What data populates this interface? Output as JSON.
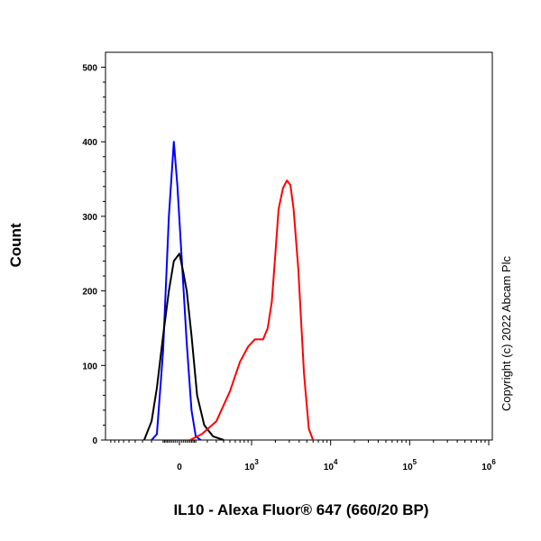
{
  "chart_data": {
    "type": "line",
    "xlabel": "IL10 - Alexa Fluor® 647 (660/20 BP)",
    "ylabel": "Count",
    "ylim": [
      0,
      520
    ],
    "y_ticks": [
      0,
      100,
      200,
      300,
      400,
      500
    ],
    "x_scale": "biexponential",
    "x_ticks": [
      {
        "value": 0,
        "base": "0",
        "exp": ""
      },
      {
        "value": 1000,
        "base": "10",
        "exp": "3"
      },
      {
        "value": 10000,
        "base": "10",
        "exp": "4"
      },
      {
        "value": 100000,
        "base": "10",
        "exp": "5"
      },
      {
        "value": 1000000,
        "base": "10",
        "exp": "6"
      }
    ],
    "grid": false,
    "series": [
      {
        "color": "#0000ff",
        "points": [
          [
            -200,
            0
          ],
          [
            -150,
            8
          ],
          [
            -100,
            120
          ],
          [
            -60,
            300
          ],
          [
            -30,
            400
          ],
          [
            -10,
            340
          ],
          [
            10,
            250
          ],
          [
            40,
            130
          ],
          [
            70,
            40
          ],
          [
            100,
            5
          ],
          [
            140,
            0
          ]
        ]
      },
      {
        "color": "#000000",
        "points": [
          [
            -280,
            0
          ],
          [
            -200,
            25
          ],
          [
            -150,
            70
          ],
          [
            -100,
            140
          ],
          [
            -60,
            200
          ],
          [
            -30,
            240
          ],
          [
            0,
            250
          ],
          [
            20,
            225
          ],
          [
            40,
            200
          ],
          [
            70,
            140
          ],
          [
            110,
            60
          ],
          [
            170,
            20
          ],
          [
            260,
            5
          ],
          [
            400,
            0
          ]
        ]
      },
      {
        "color": "#ff0000",
        "points": [
          [
            60,
            0
          ],
          [
            150,
            8
          ],
          [
            300,
            25
          ],
          [
            500,
            65
          ],
          [
            700,
            105
          ],
          [
            900,
            125
          ],
          [
            1100,
            135
          ],
          [
            1400,
            135
          ],
          [
            1600,
            150
          ],
          [
            1800,
            185
          ],
          [
            2000,
            250
          ],
          [
            2200,
            310
          ],
          [
            2500,
            338
          ],
          [
            2800,
            348
          ],
          [
            3100,
            342
          ],
          [
            3400,
            310
          ],
          [
            3900,
            230
          ],
          [
            4600,
            90
          ],
          [
            5300,
            15
          ],
          [
            6000,
            0
          ]
        ]
      }
    ]
  },
  "watermark": "Copyright (c) 2022 Abcam Plc"
}
